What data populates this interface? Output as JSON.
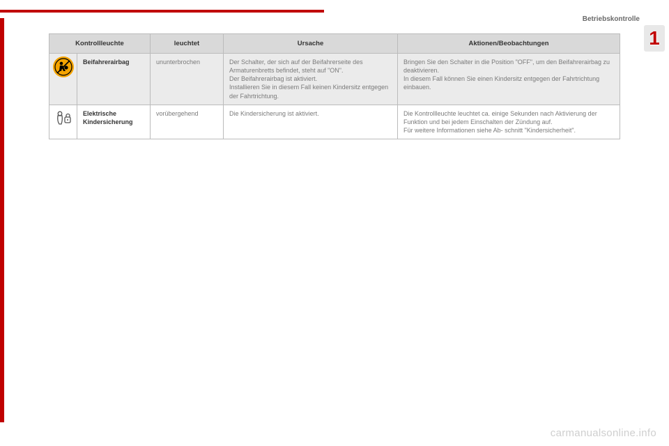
{
  "section_title": "Betriebskontrolle",
  "chapter_number": "1",
  "watermark": "carmanualsonline.info",
  "colors": {
    "accent": "#c00000",
    "header_bg": "#d9d9d9",
    "row_highlight": "#ebebeb",
    "airbag_icon_bg": "#f5a400",
    "body_text": "#7a7a7a",
    "border": "#bbbbbb"
  },
  "table": {
    "headers": {
      "col1": "Kontrollleuchte",
      "col2": "leuchtet",
      "col3": "Ursache",
      "col4": "Aktionen/Beobachtungen"
    },
    "rows": [
      {
        "icon": "airbag-off",
        "label": "Beifahrerairbag",
        "status": "ununterbrochen",
        "cause": "Der Schalter, der sich auf der Beifahrerseite des Armaturenbretts befindet, steht auf \"ON\".\nDer Beifahrerairbag ist aktiviert.\nInstallieren Sie in diesem Fall keinen Kindersitz entgegen der Fahrtrichtung.",
        "action": "Bringen Sie den Schalter in die Position \"OFF\", um den Beifahrerairbag zu deaktivieren.\nIn diesem Fall können Sie einen Kindersitz entgegen der Fahrtrichtung einbauen.",
        "highlight": true
      },
      {
        "icon": "child-lock",
        "label": "Elektrische Kindersicherung",
        "status": "vorübergehend",
        "cause": "Die Kindersicherung ist aktiviert.",
        "action": "Die Kontrollleuchte leuchtet ca. einige Sekunden nach Aktivierung der Funktion und bei jedem Einschalten der Zündung auf.\nFür weitere Informationen siehe Ab- schnitt \"Kindersicherheit\".",
        "highlight": false
      }
    ]
  }
}
